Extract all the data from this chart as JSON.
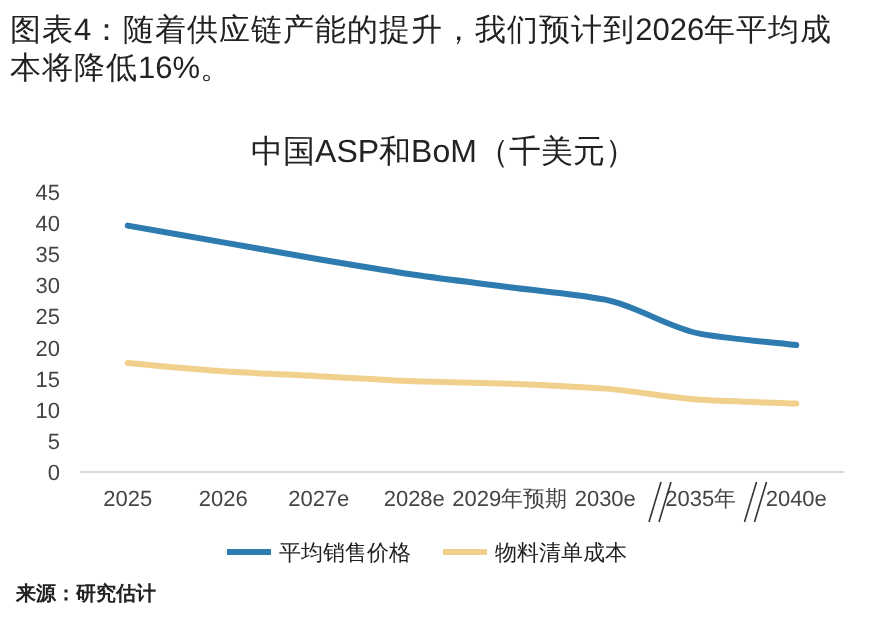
{
  "chart_data": {
    "type": "line",
    "title": "图表4：随着供应链产能的提升，我们预计到2026年平均成本将降低16%。",
    "subtitle": "中国ASP和BoM（千美元）",
    "categories": [
      "2025",
      "2026",
      "2027e",
      "2028e",
      "2029年预期",
      "2030e",
      "2035年",
      "2040e"
    ],
    "series": [
      {
        "name": "平均销售价格",
        "color": "#2e7bb0",
        "values": [
          39.6,
          36.9,
          34.2,
          31.7,
          29.7,
          27.7,
          22.2,
          20.4
        ]
      },
      {
        "name": "物料清单成本",
        "color": "#f0d08c",
        "values": [
          17.5,
          16.2,
          15.4,
          14.6,
          14.2,
          13.4,
          11.6,
          11.0
        ]
      }
    ],
    "ylim": [
      0,
      45
    ],
    "yticks": [
      0,
      5,
      10,
      15,
      20,
      25,
      30,
      35,
      40,
      45
    ],
    "legend": "bottom",
    "annotations": [
      "来源：研究估计"
    ]
  }
}
